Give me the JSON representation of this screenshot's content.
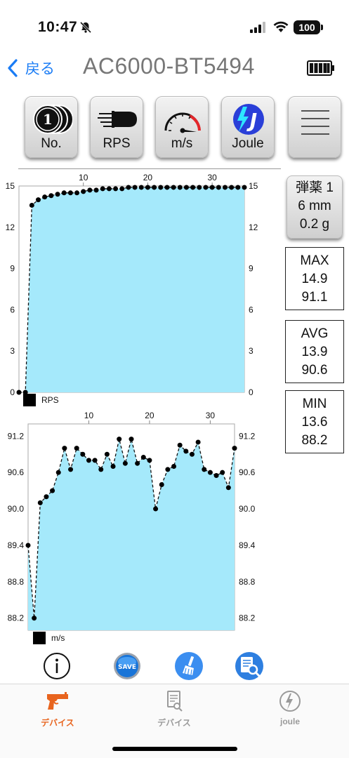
{
  "status_bar": {
    "time": "10:47",
    "battery_level": "100"
  },
  "nav": {
    "back_label": "戻る",
    "title": "AC6000-BT5494"
  },
  "toolbar": [
    {
      "label": "No.",
      "icon": "coins-icon"
    },
    {
      "label": "RPS",
      "icon": "bullet-icon"
    },
    {
      "label": "m/s",
      "icon": "speedometer-icon"
    },
    {
      "label": "Joule",
      "icon": "joule-bolt-icon"
    },
    {
      "label": "",
      "icon": "menu-icon"
    }
  ],
  "ammo": {
    "line1": "弾薬 1",
    "line2": "6 mm",
    "line3": "0.2 g"
  },
  "stats": {
    "max": {
      "label": "MAX",
      "rps": "14.9",
      "speed": "91.1"
    },
    "avg": {
      "label": "AVG",
      "rps": "13.9",
      "speed": "90.6"
    },
    "min": {
      "label": "MIN",
      "rps": "13.6",
      "speed": "88.2"
    }
  },
  "chart_data": [
    {
      "type": "area",
      "legend": "RPS",
      "x_ticks": [
        10,
        20,
        30
      ],
      "y_ticks": [
        0,
        3,
        6,
        9,
        12,
        15
      ],
      "ylim": [
        0,
        15
      ],
      "xlim": [
        0,
        35
      ],
      "fill_color": "#a5e9fb",
      "x": [
        0,
        1,
        2,
        3,
        4,
        5,
        6,
        7,
        8,
        9,
        10,
        11,
        12,
        13,
        14,
        15,
        16,
        17,
        18,
        19,
        20,
        21,
        22,
        23,
        24,
        25,
        26,
        27,
        28,
        29,
        30,
        31,
        32,
        33,
        34,
        35
      ],
      "values": [
        0,
        0,
        13.6,
        14.0,
        14.2,
        14.3,
        14.4,
        14.5,
        14.5,
        14.5,
        14.6,
        14.7,
        14.7,
        14.8,
        14.8,
        14.8,
        14.8,
        14.9,
        14.9,
        14.9,
        14.9,
        14.9,
        14.9,
        14.9,
        14.9,
        14.9,
        14.9,
        14.9,
        14.9,
        14.9,
        14.9,
        14.9,
        14.9,
        14.9,
        14.9,
        14.9
      ]
    },
    {
      "type": "area",
      "legend": "m/s",
      "x_ticks": [
        10,
        20,
        30
      ],
      "y_ticks": [
        88.2,
        88.8,
        89.4,
        90.0,
        90.6,
        91.2
      ],
      "y_tick_labels": [
        "88.2",
        "88.8",
        "89.4",
        "90.0",
        "90.6",
        "91.2"
      ],
      "ylim": [
        88.0,
        91.4
      ],
      "xlim": [
        0,
        34
      ],
      "fill_color": "#a5e9fb",
      "x": [
        0,
        1,
        2,
        3,
        4,
        5,
        6,
        7,
        8,
        9,
        10,
        11,
        12,
        13,
        14,
        15,
        16,
        17,
        18,
        19,
        20,
        21,
        22,
        23,
        24,
        25,
        26,
        27,
        28,
        29,
        30,
        31,
        32,
        33,
        34
      ],
      "values": [
        89.4,
        88.2,
        90.1,
        90.2,
        90.3,
        90.6,
        91.0,
        90.65,
        91.0,
        90.9,
        90.8,
        90.8,
        90.65,
        90.9,
        90.7,
        91.15,
        90.75,
        91.15,
        90.75,
        90.85,
        90.8,
        90.0,
        90.4,
        90.65,
        90.7,
        91.05,
        90.95,
        90.9,
        91.1,
        90.65,
        90.6,
        90.55,
        90.6,
        90.35,
        91.0
      ]
    }
  ],
  "bottom_icons": [
    "info-icon",
    "save-icon",
    "broom-icon",
    "document-search-icon"
  ],
  "save_badge": "SAVE",
  "tabs": [
    {
      "label": "デバイス",
      "icon": "pistol-icon",
      "active": true,
      "color": "#e8641e"
    },
    {
      "label": "デバイス",
      "icon": "document-icon",
      "active": false,
      "color": "#9a9a9a"
    },
    {
      "label": "joule",
      "icon": "bolt-circle-icon",
      "active": false,
      "color": "#9a9a9a"
    }
  ]
}
